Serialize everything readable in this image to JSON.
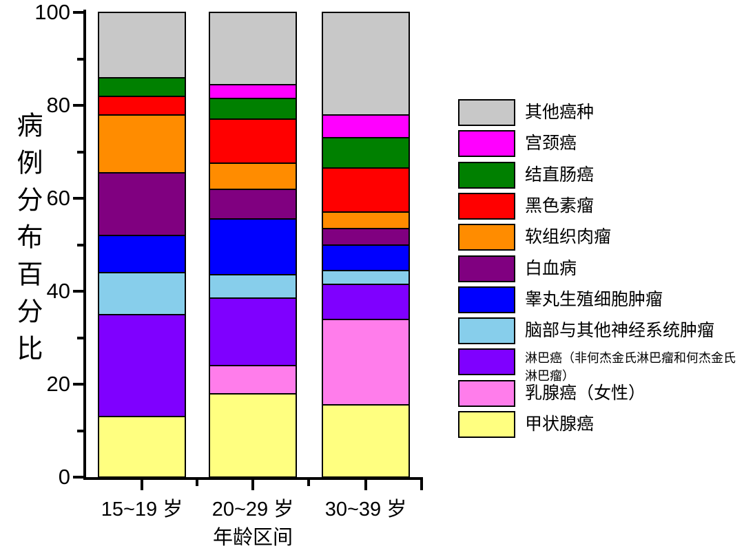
{
  "chart_data": {
    "type": "stacked-bar",
    "title": "",
    "xlabel": "年龄区间",
    "ylabel": "病例分布百分比",
    "ylim": [
      0,
      100
    ],
    "yticks_major": [
      0,
      20,
      40,
      60,
      80,
      100
    ],
    "yticks_minor": [
      10,
      30,
      50,
      70,
      90
    ],
    "categories": [
      "15~19 岁",
      "20~29 岁",
      "30~39 岁"
    ],
    "series": [
      {
        "name": "甲状腺癌",
        "color": "#FFFF80",
        "values": [
          13.0,
          18.0,
          15.5
        ]
      },
      {
        "name": "乳腺癌（女性）",
        "color": "#FF7DEB",
        "values": [
          0.0,
          6.0,
          18.5
        ]
      },
      {
        "name": "淋巴癌（非何杰金氏淋巴瘤和何杰金氏淋巴瘤）",
        "color": "#7F00FF",
        "values": [
          22.0,
          14.5,
          7.5
        ]
      },
      {
        "name": "脑部与其他神经系统肿瘤",
        "color": "#87CEEB",
        "values": [
          9.0,
          5.0,
          3.0
        ]
      },
      {
        "name": "睾丸生殖细胞肿瘤",
        "color": "#0000FF",
        "values": [
          8.0,
          12.0,
          5.5
        ]
      },
      {
        "name": "白血病",
        "color": "#800080",
        "values": [
          13.5,
          6.5,
          3.5
        ]
      },
      {
        "name": "软组织肉瘤",
        "color": "#FF8C00",
        "values": [
          12.5,
          5.5,
          3.5
        ]
      },
      {
        "name": "黑色素瘤",
        "color": "#FF0000",
        "values": [
          4.0,
          9.5,
          9.5
        ]
      },
      {
        "name": "结直肠癌",
        "color": "#008000",
        "values": [
          4.0,
          4.5,
          6.5
        ]
      },
      {
        "name": "宫颈癌",
        "color": "#FF00FF",
        "values": [
          0.0,
          3.0,
          5.0
        ]
      },
      {
        "name": "其他癌种",
        "color": "#C8C8C8",
        "values": [
          14.0,
          15.5,
          22.0
        ]
      }
    ],
    "grid": false,
    "legend_position": "right",
    "axis_color": "#000000",
    "bar_border_color": "#000000"
  },
  "legend": {
    "items": [
      {
        "label": "其他癌种",
        "color": "#C8C8C8",
        "small": false
      },
      {
        "label": "宫颈癌",
        "color": "#FF00FF",
        "small": false
      },
      {
        "label": "结直肠癌",
        "color": "#008000",
        "small": false
      },
      {
        "label": "黑色素瘤",
        "color": "#FF0000",
        "small": false
      },
      {
        "label": "软组织肉瘤",
        "color": "#FF8C00",
        "small": false
      },
      {
        "label": "白血病",
        "color": "#800080",
        "small": false
      },
      {
        "label": "睾丸生殖细胞肿瘤",
        "color": "#0000FF",
        "small": false
      },
      {
        "label": "脑部与其他神经系统肿瘤",
        "color": "#87CEEB",
        "small": false
      },
      {
        "label": "淋巴癌（非何杰金氏淋巴瘤和何杰金氏淋巴瘤）",
        "color": "#7F00FF",
        "small": true
      },
      {
        "label": "乳腺癌（女性）",
        "color": "#FF7DEB",
        "small": false
      },
      {
        "label": "甲状腺癌",
        "color": "#FFFF80",
        "small": false
      }
    ]
  }
}
